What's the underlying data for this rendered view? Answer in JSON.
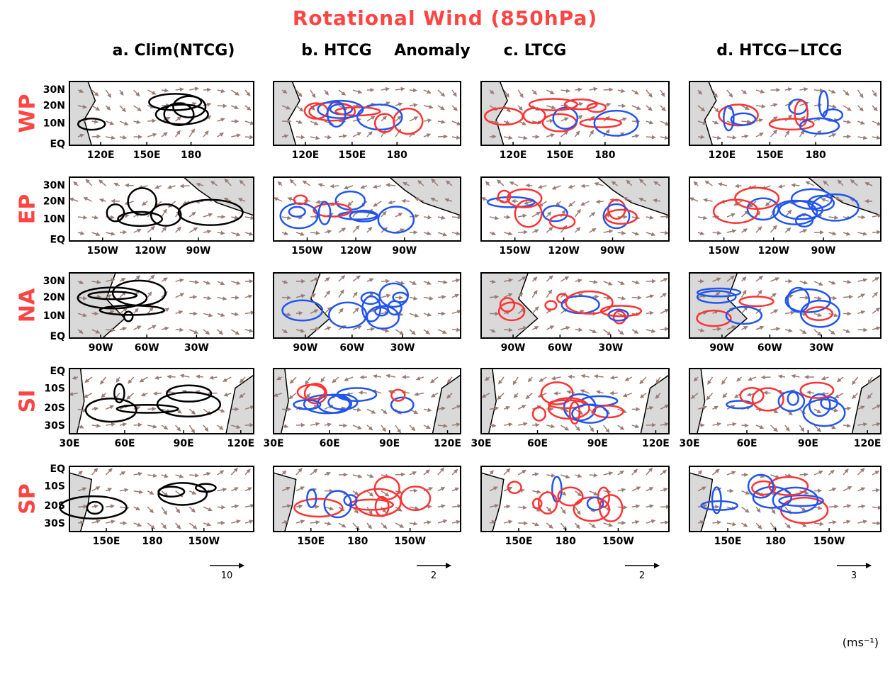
{
  "title": "Rotational Wind (850hPa)",
  "columns": [
    "a. Clim(NTCG)",
    "b. HTCG",
    "c. LTCG",
    "d. HTCG−LTCG"
  ],
  "anomaly_label": "Anomaly",
  "rows": [
    {
      "label": "WP",
      "lat_ticks": [
        "30N",
        "20N",
        "10N",
        "EQ"
      ],
      "lon_ticks": [
        "120E",
        "150E",
        "180"
      ]
    },
    {
      "label": "EP",
      "lat_ticks": [
        "30N",
        "20N",
        "10N",
        "EQ"
      ],
      "lon_ticks": [
        "150W",
        "120W",
        "90W"
      ]
    },
    {
      "label": "NA",
      "lat_ticks": [
        "30N",
        "20N",
        "10N",
        "EQ"
      ],
      "lon_ticks": [
        "90W",
        "60W",
        "30W"
      ]
    },
    {
      "label": "SI",
      "lat_ticks": [
        "EQ",
        "10S",
        "20S",
        "30S"
      ],
      "lon_ticks": [
        "30E",
        "60E",
        "90E",
        "120E"
      ]
    },
    {
      "label": "SP",
      "lat_ticks": [
        "EQ",
        "10S",
        "20S",
        "30S"
      ],
      "lon_ticks": [
        "150E",
        "180",
        "150W"
      ]
    }
  ],
  "reference_vectors": [
    "10",
    "2",
    "2",
    "3"
  ],
  "units": "(ms⁻¹)"
}
